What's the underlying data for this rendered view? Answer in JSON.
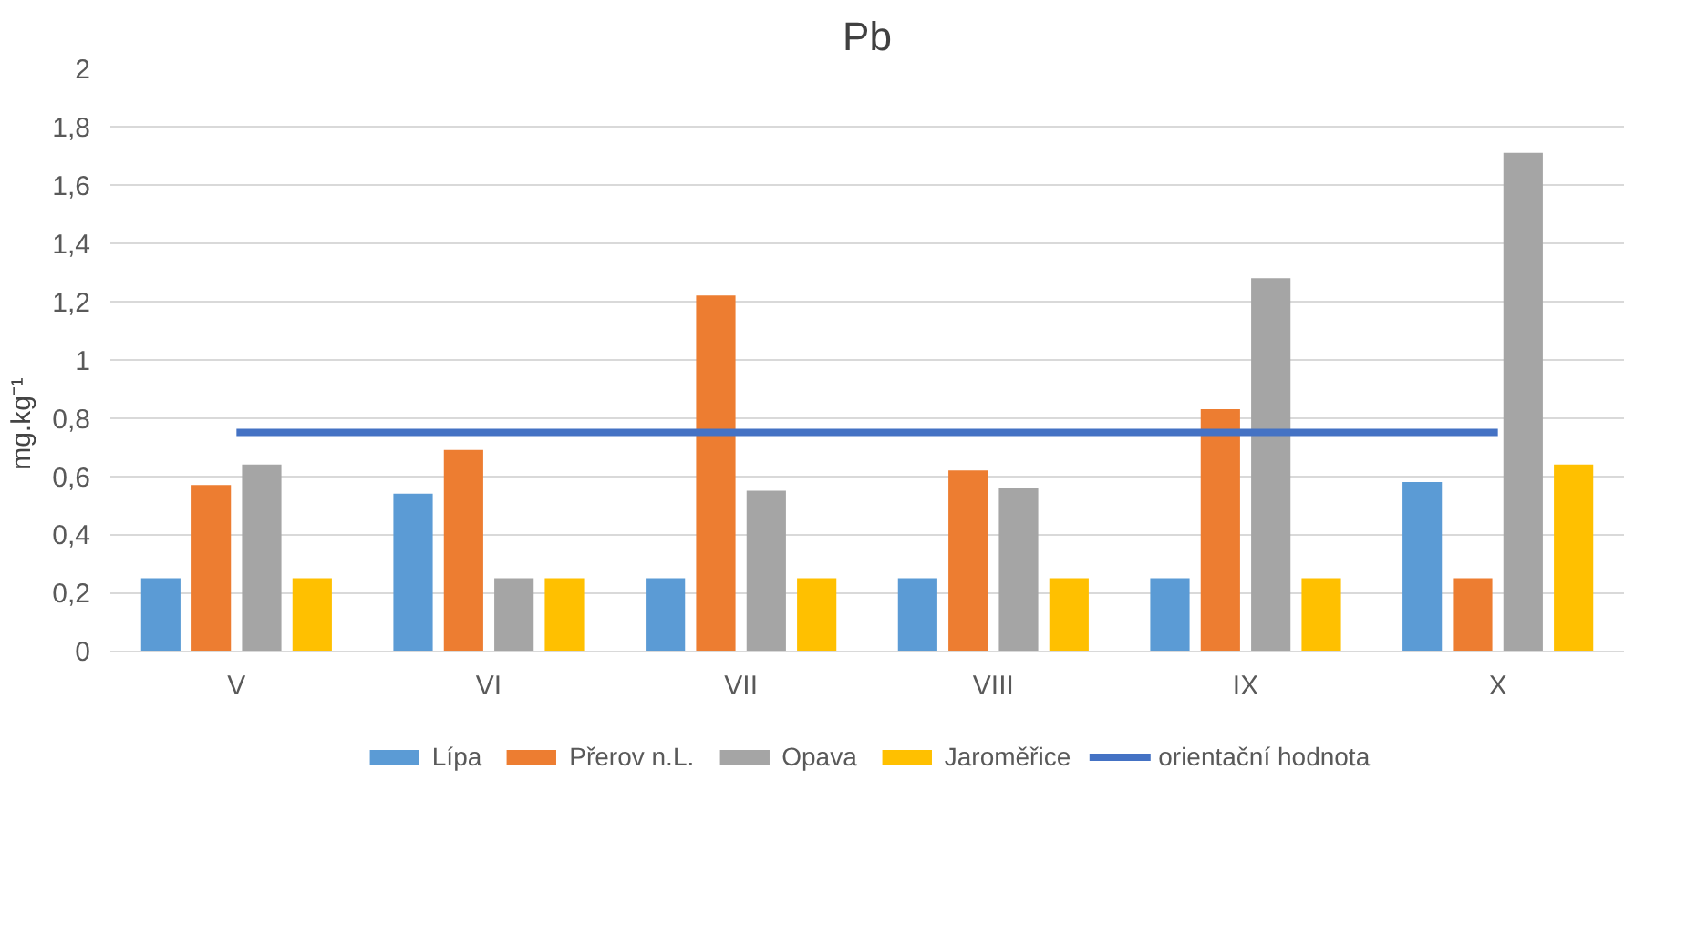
{
  "chart_data": {
    "type": "bar",
    "title": "Pb",
    "ylabel": "mg.kg⁻¹",
    "categories": [
      "V",
      "VI",
      "VII",
      "VIII",
      "IX",
      "X"
    ],
    "series": [
      {
        "name": "Lípa",
        "color": "#5b9bd5",
        "values": [
          0.25,
          0.54,
          0.25,
          0.25,
          0.25,
          0.58
        ]
      },
      {
        "name": "Přerov n.L.",
        "color": "#ed7d31",
        "values": [
          0.57,
          0.69,
          1.22,
          0.62,
          0.83,
          0.25
        ]
      },
      {
        "name": "Opava",
        "color": "#a5a5a5",
        "values": [
          0.64,
          0.25,
          0.55,
          0.56,
          1.28,
          1.71
        ]
      },
      {
        "name": "Jaroměřice",
        "color": "#ffc000",
        "values": [
          0.25,
          0.25,
          0.25,
          0.25,
          0.25,
          0.64
        ]
      },
      {
        "name": "orientační hodnota",
        "type": "line",
        "color": "#4472c4",
        "values": [
          0.75,
          0.75,
          0.75,
          0.75,
          0.75,
          0.75
        ]
      }
    ],
    "ylim": [
      0,
      2
    ],
    "yticks": [
      0,
      {
        "value": 0.2,
        "label": "0,2"
      },
      {
        "value": 0.4,
        "label": "0,4"
      },
      {
        "value": 0.6,
        "label": "0,6"
      },
      {
        "value": 0.8,
        "label": "0,8"
      },
      1,
      {
        "value": 1.2,
        "label": "1,2"
      },
      {
        "value": 1.4,
        "label": "1,4"
      },
      {
        "value": 1.6,
        "label": "1,6"
      },
      {
        "value": 1.8,
        "label": "1,8"
      },
      2
    ],
    "grid": "y",
    "legend": "bottom"
  }
}
